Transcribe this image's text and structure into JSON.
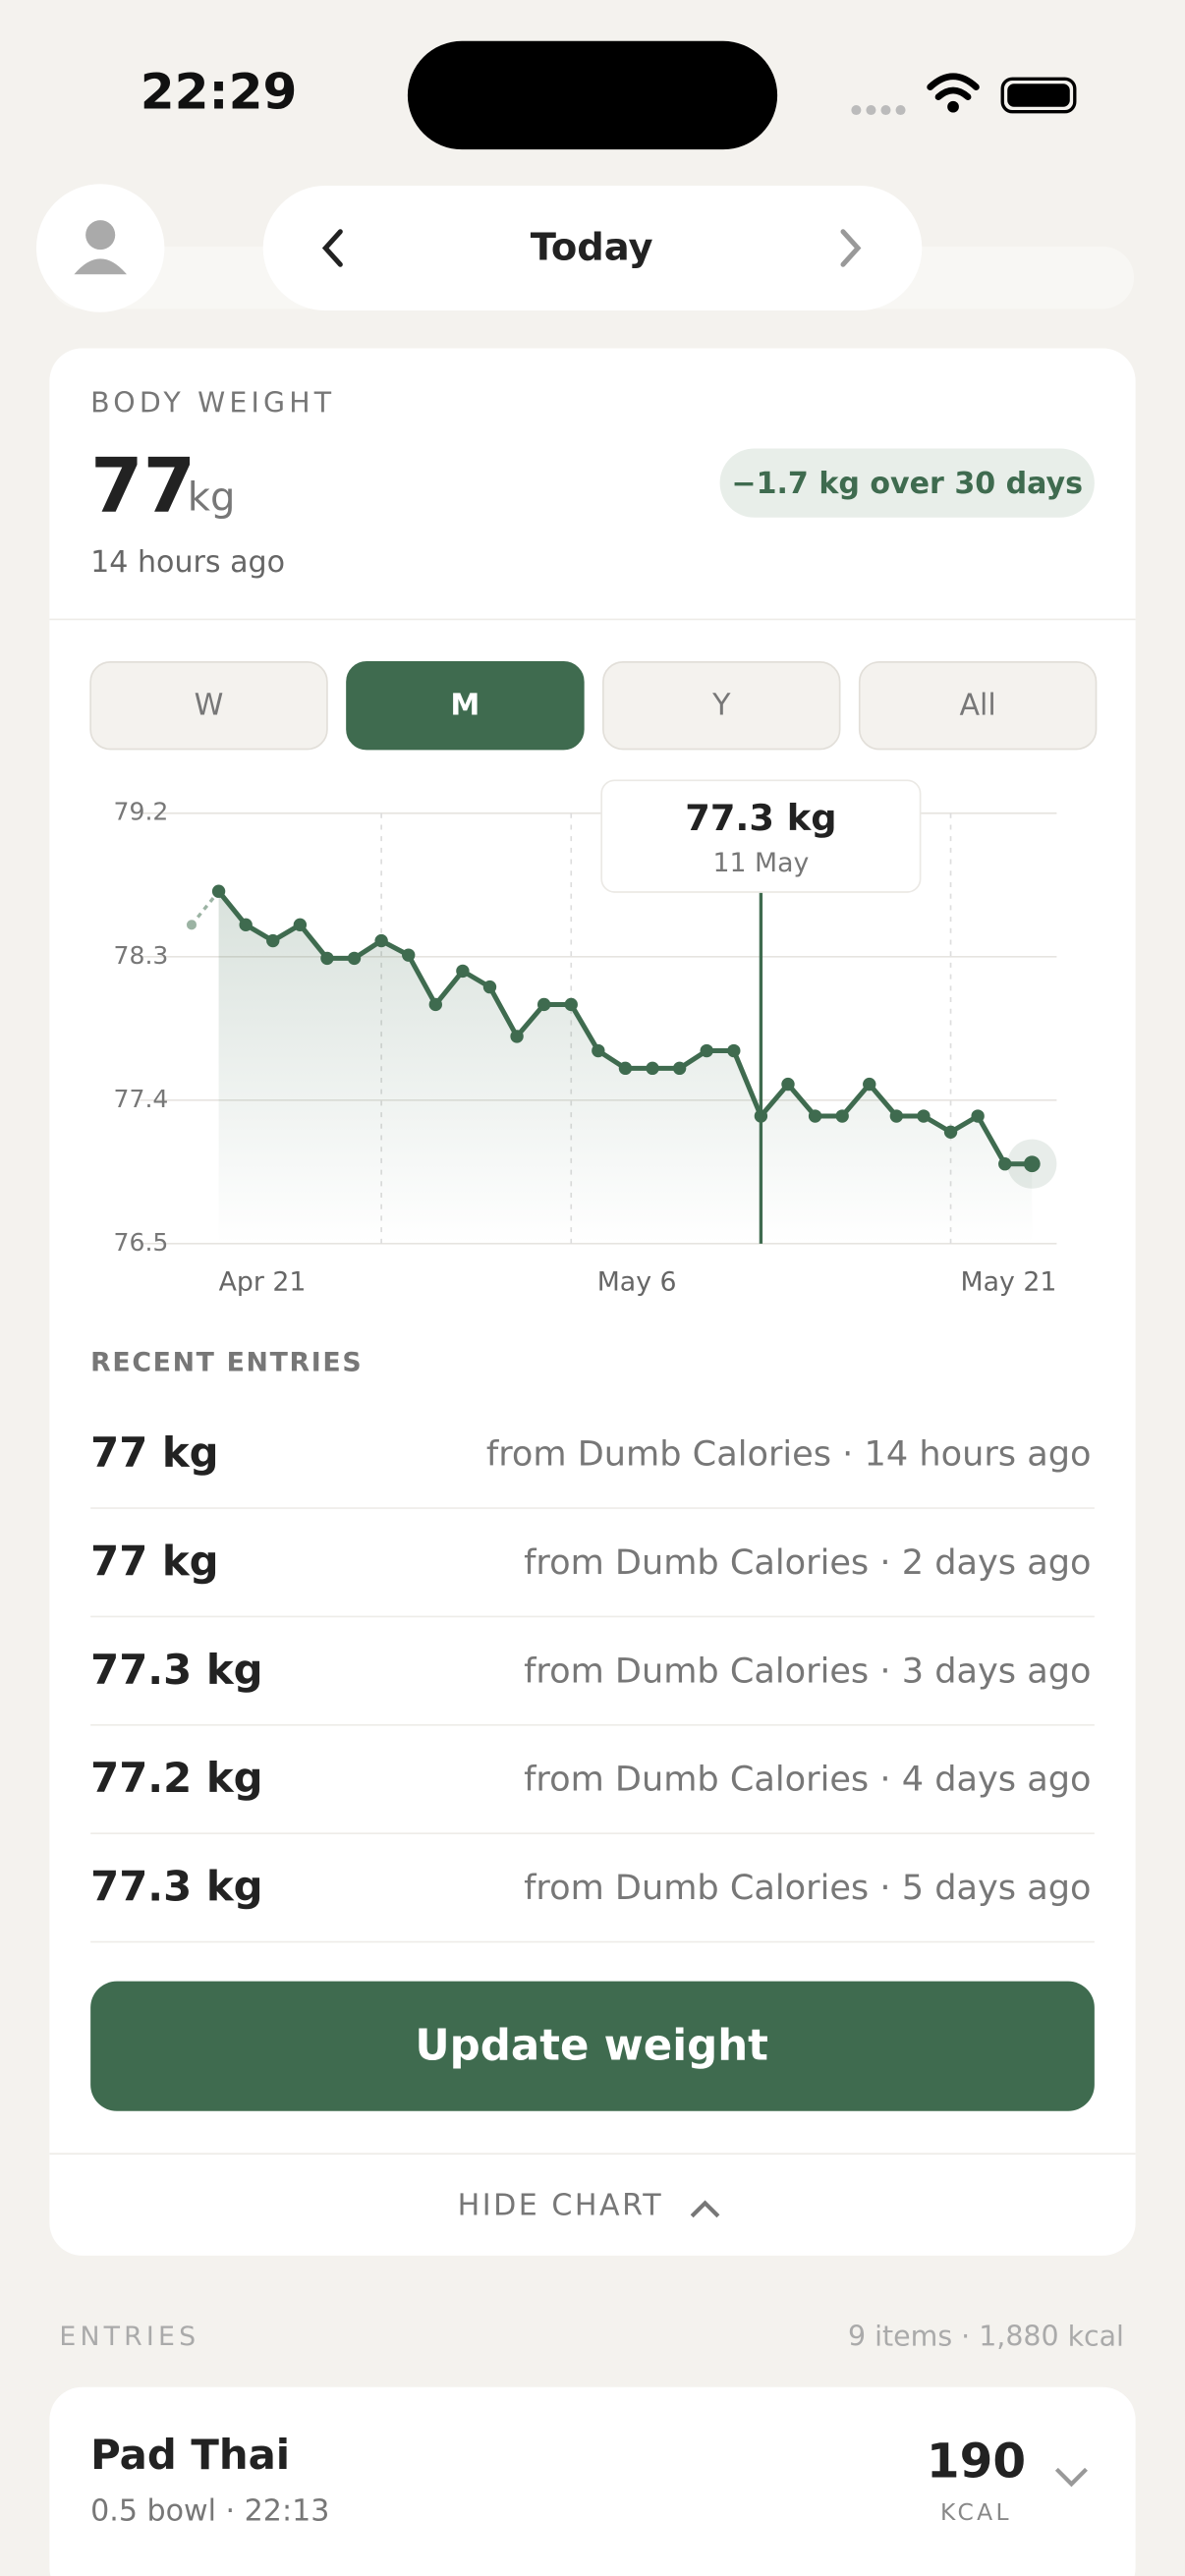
{
  "status_bar": {
    "time": "22:29"
  },
  "nav": {
    "title": "Today"
  },
  "card": {
    "title": "BODY WEIGHT",
    "value": "77",
    "unit": "kg",
    "updated": "14 hours ago",
    "change_badge": "−1.7 kg over 30 days",
    "ranges": [
      "W",
      "M",
      "Y",
      "All"
    ],
    "selected": "M"
  },
  "chart_data": {
    "type": "line",
    "color": "#3f6b4f",
    "values": [
      78.71,
      78.5,
      78.4,
      78.5,
      78.29,
      78.29,
      78.4,
      78.31,
      78.0,
      78.21,
      78.11,
      77.8,
      78.0,
      78.0,
      77.71,
      77.6,
      77.6,
      77.6,
      77.71,
      77.71,
      77.3,
      77.5,
      77.3,
      77.3,
      77.5,
      77.3,
      77.3,
      77.2,
      77.3,
      77.0,
      77.0
    ],
    "previous_value": 78.5,
    "ylim": [
      76.5,
      79.2
    ],
    "yticks": [
      76.5,
      77.4,
      78.3,
      79.2
    ],
    "grid": true,
    "x_labels": [
      "Apr 21",
      "May 6",
      "May 21"
    ],
    "tooltip": {
      "value_label": "77.3 kg",
      "date": "11 May"
    }
  },
  "recent_entries": {
    "title": "RECENT ENTRIES",
    "rows": [
      {
        "weight": "77 kg",
        "source": "from Dumb Calories · 14 hours ago"
      },
      {
        "weight": "77 kg",
        "source": "from Dumb Calories · 2 days ago"
      },
      {
        "weight": "77.3 kg",
        "source": "from Dumb Calories · 3 days ago"
      },
      {
        "weight": "77.2 kg",
        "source": "from Dumb Calories · 4 days ago"
      },
      {
        "weight": "77.3 kg",
        "source": "from Dumb Calories · 5 days ago"
      }
    ]
  },
  "button": "Update weight",
  "toggle": "HIDE CHART",
  "entries": {
    "title": "ENTRIES",
    "summary": "9 items · 1,880 kcal",
    "items": [
      {
        "name": "Pad Thai",
        "detail": "0.5 bowl · 22:13",
        "kcal": "190",
        "unit": "KCAL"
      }
    ]
  }
}
